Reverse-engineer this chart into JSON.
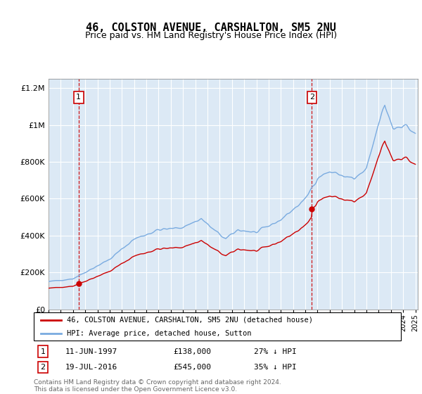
{
  "title": "46, COLSTON AVENUE, CARSHALTON, SM5 2NU",
  "subtitle": "Price paid vs. HM Land Registry's House Price Index (HPI)",
  "sale1_date": "11-JUN-1997",
  "sale1_price": 138000,
  "sale1_pct": "27% ↓ HPI",
  "sale1_year": 1997.458,
  "sale2_date": "19-JUL-2016",
  "sale2_price": 545000,
  "sale2_pct": "35% ↓ HPI",
  "sale2_year": 2016.542,
  "legend_label1": "46, COLSTON AVENUE, CARSHALTON, SM5 2NU (detached house)",
  "legend_label2": "HPI: Average price, detached house, Sutton",
  "footer": "Contains HM Land Registry data © Crown copyright and database right 2024.\nThis data is licensed under the Open Government Licence v3.0.",
  "bg_color": "#dce9f5",
  "hpi_color": "#7aabe0",
  "price_color": "#cc0000",
  "dashed_color": "#cc0000",
  "ylim_max": 1250000,
  "ylim_min": 0,
  "xlim_min": 1995.0,
  "xlim_max": 2025.2
}
